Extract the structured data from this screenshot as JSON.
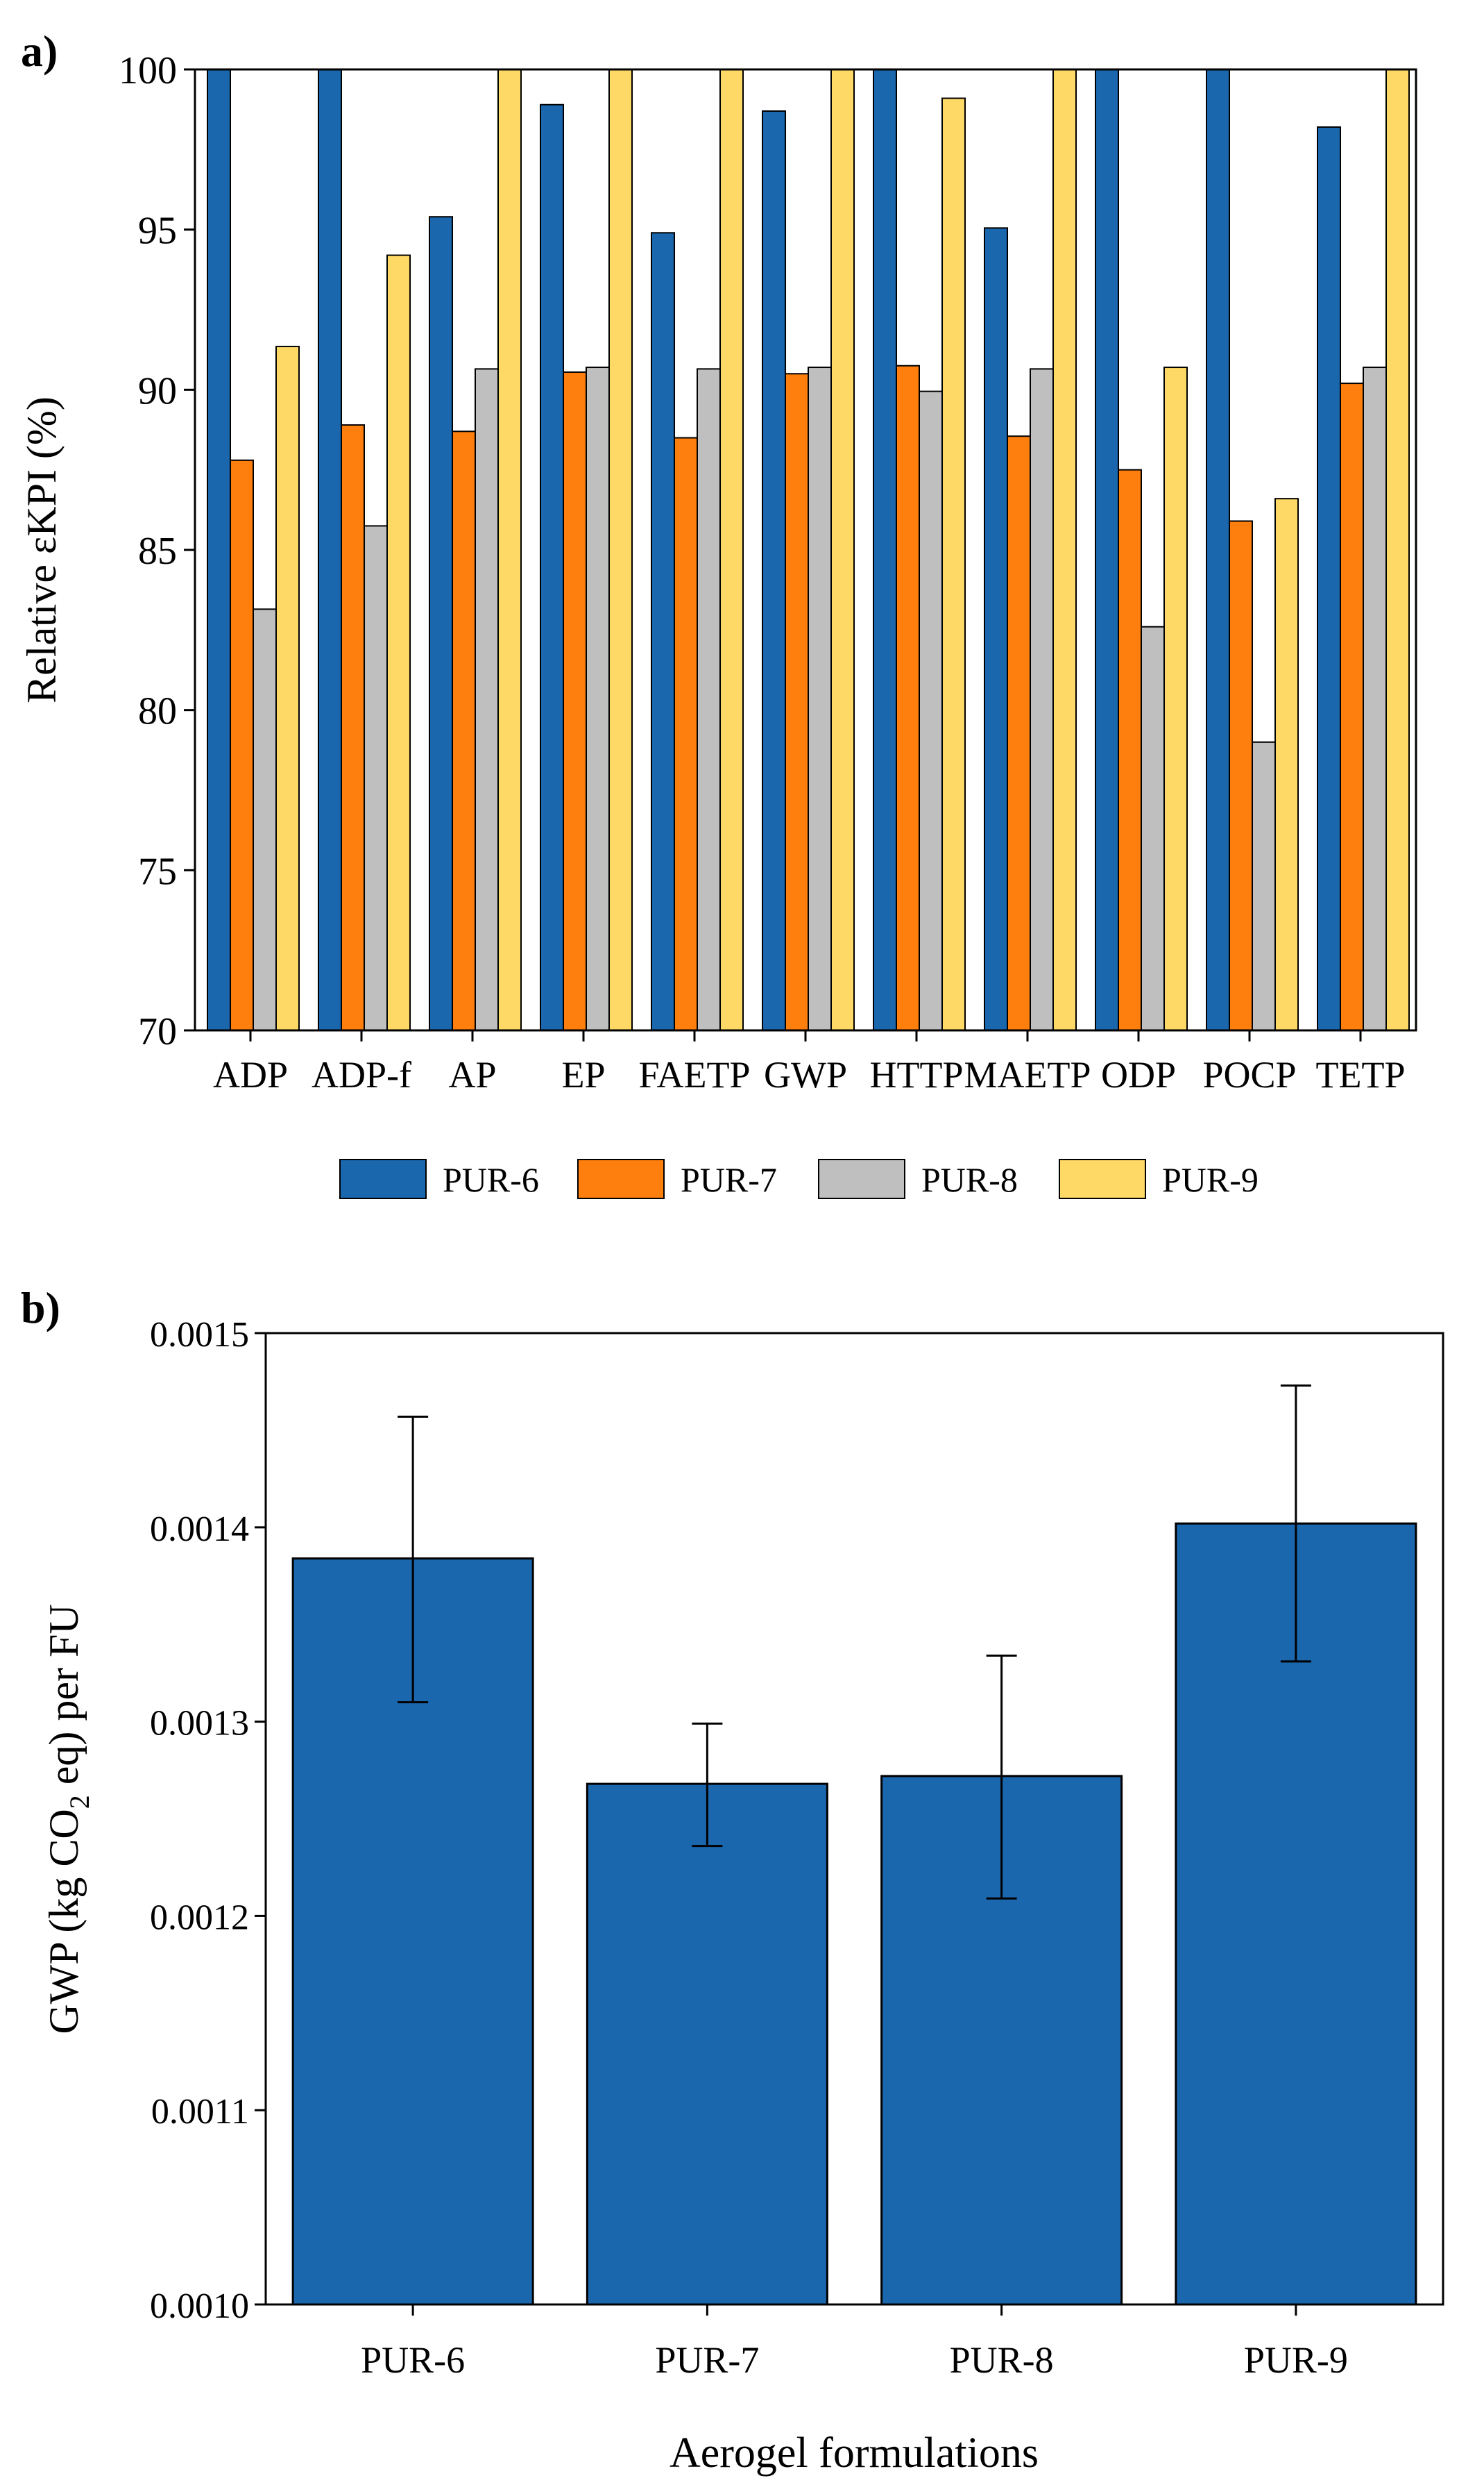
{
  "chart_data": [
    {
      "panel_label": "a)",
      "type": "bar",
      "title": "",
      "xlabel": "",
      "ylabel": "Relative εKPI (%)",
      "ylim": [
        70,
        100
      ],
      "yticks": [
        70,
        75,
        80,
        85,
        90,
        95,
        100
      ],
      "categories": [
        "ADP",
        "ADP-f",
        "AP",
        "EP",
        "FAETP",
        "GWP",
        "HTTP",
        "MAETP",
        "ODP",
        "POCP",
        "TETP"
      ],
      "series": [
        {
          "name": "PUR-6",
          "color": "#1B67AE",
          "values": [
            100,
            100,
            95.4,
            98.9,
            94.9,
            98.7,
            100,
            95.05,
            100,
            100,
            98.2
          ]
        },
        {
          "name": "PUR-7",
          "color": "#FF7F0E",
          "values": [
            87.8,
            88.9,
            88.7,
            90.55,
            88.5,
            90.5,
            90.75,
            88.55,
            87.5,
            85.9,
            90.2
          ]
        },
        {
          "name": "PUR-8",
          "color": "#BFBFBF",
          "values": [
            83.15,
            85.75,
            90.65,
            90.7,
            90.65,
            90.7,
            89.95,
            90.65,
            82.6,
            79.0,
            90.7
          ]
        },
        {
          "name": "PUR-9",
          "color": "#FFD966",
          "values": [
            91.35,
            94.2,
            100,
            100,
            100,
            100,
            99.1,
            100,
            90.7,
            86.6,
            100
          ]
        }
      ],
      "legend": "bottom"
    },
    {
      "panel_label": "b)",
      "type": "bar",
      "title": "",
      "xlabel": "Aerogel formulations",
      "ylabel_main": "GWP (kg CO",
      "ylabel_sub": "2",
      "ylabel_tail": " eq) per FU",
      "ylim": [
        0.001,
        0.0015
      ],
      "yticks": [
        "0.0010",
        "0.0011",
        "0.0012",
        "0.0013",
        "0.0014",
        "0.0015"
      ],
      "categories": [
        "PUR-6",
        "PUR-7",
        "PUR-8",
        "PUR-9"
      ],
      "values": [
        0.001384,
        0.001268,
        0.001272,
        0.001402
      ],
      "error_low": [
        0.00131,
        0.001236,
        0.001209,
        0.001331
      ],
      "error_high": [
        0.001457,
        0.001299,
        0.001334,
        0.001473
      ],
      "bar_color": "#1B67AE"
    }
  ]
}
